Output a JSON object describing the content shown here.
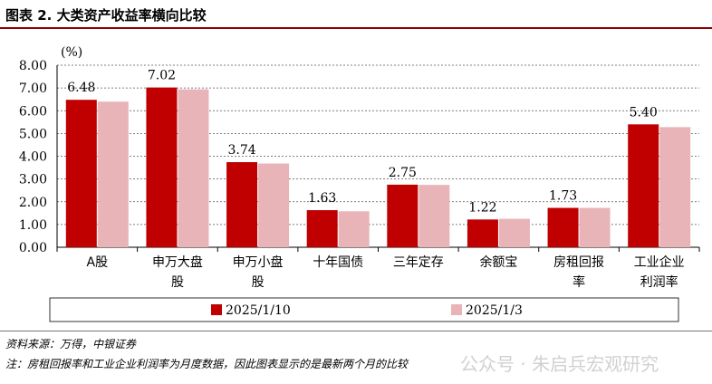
{
  "figure_title": "图表 2.  大类资产收益率横向比较",
  "source": "资料来源：万得，中银证券",
  "note": "注：房租回报率和工业企业利润率为月度数据，因此图表显示的是最新两个月的比较",
  "watermark": "公众号 · 朱启兵宏观研究",
  "chart_data": {
    "type": "bar",
    "unit_label": "(%)",
    "categories": [
      [
        "A股"
      ],
      [
        "申万大盘",
        "股"
      ],
      [
        "申万小盘",
        "股"
      ],
      [
        "十年国债"
      ],
      [
        "三年定存"
      ],
      [
        "余额宝"
      ],
      [
        "房租回报",
        "率"
      ],
      [
        "工业企业",
        "利润率"
      ]
    ],
    "series": [
      {
        "name": "2025/1/10",
        "color": "#c00000",
        "values": [
          6.48,
          7.02,
          3.74,
          1.63,
          2.75,
          1.22,
          1.73,
          5.4
        ]
      },
      {
        "name": "2025/1/3",
        "color": "#e8b4b8",
        "values": [
          6.4,
          6.94,
          3.68,
          1.58,
          2.74,
          1.25,
          1.73,
          5.28
        ]
      }
    ],
    "data_labels": [
      "6.48",
      "7.02",
      "3.74",
      "1.63",
      "2.75",
      "1.22",
      "1.73",
      "5.40"
    ],
    "ylim": [
      0,
      8
    ],
    "yticks": [
      "0.00",
      "1.00",
      "2.00",
      "3.00",
      "4.00",
      "5.00",
      "6.00",
      "7.00",
      "8.00"
    ],
    "grid": true,
    "legend_position": "bottom"
  }
}
